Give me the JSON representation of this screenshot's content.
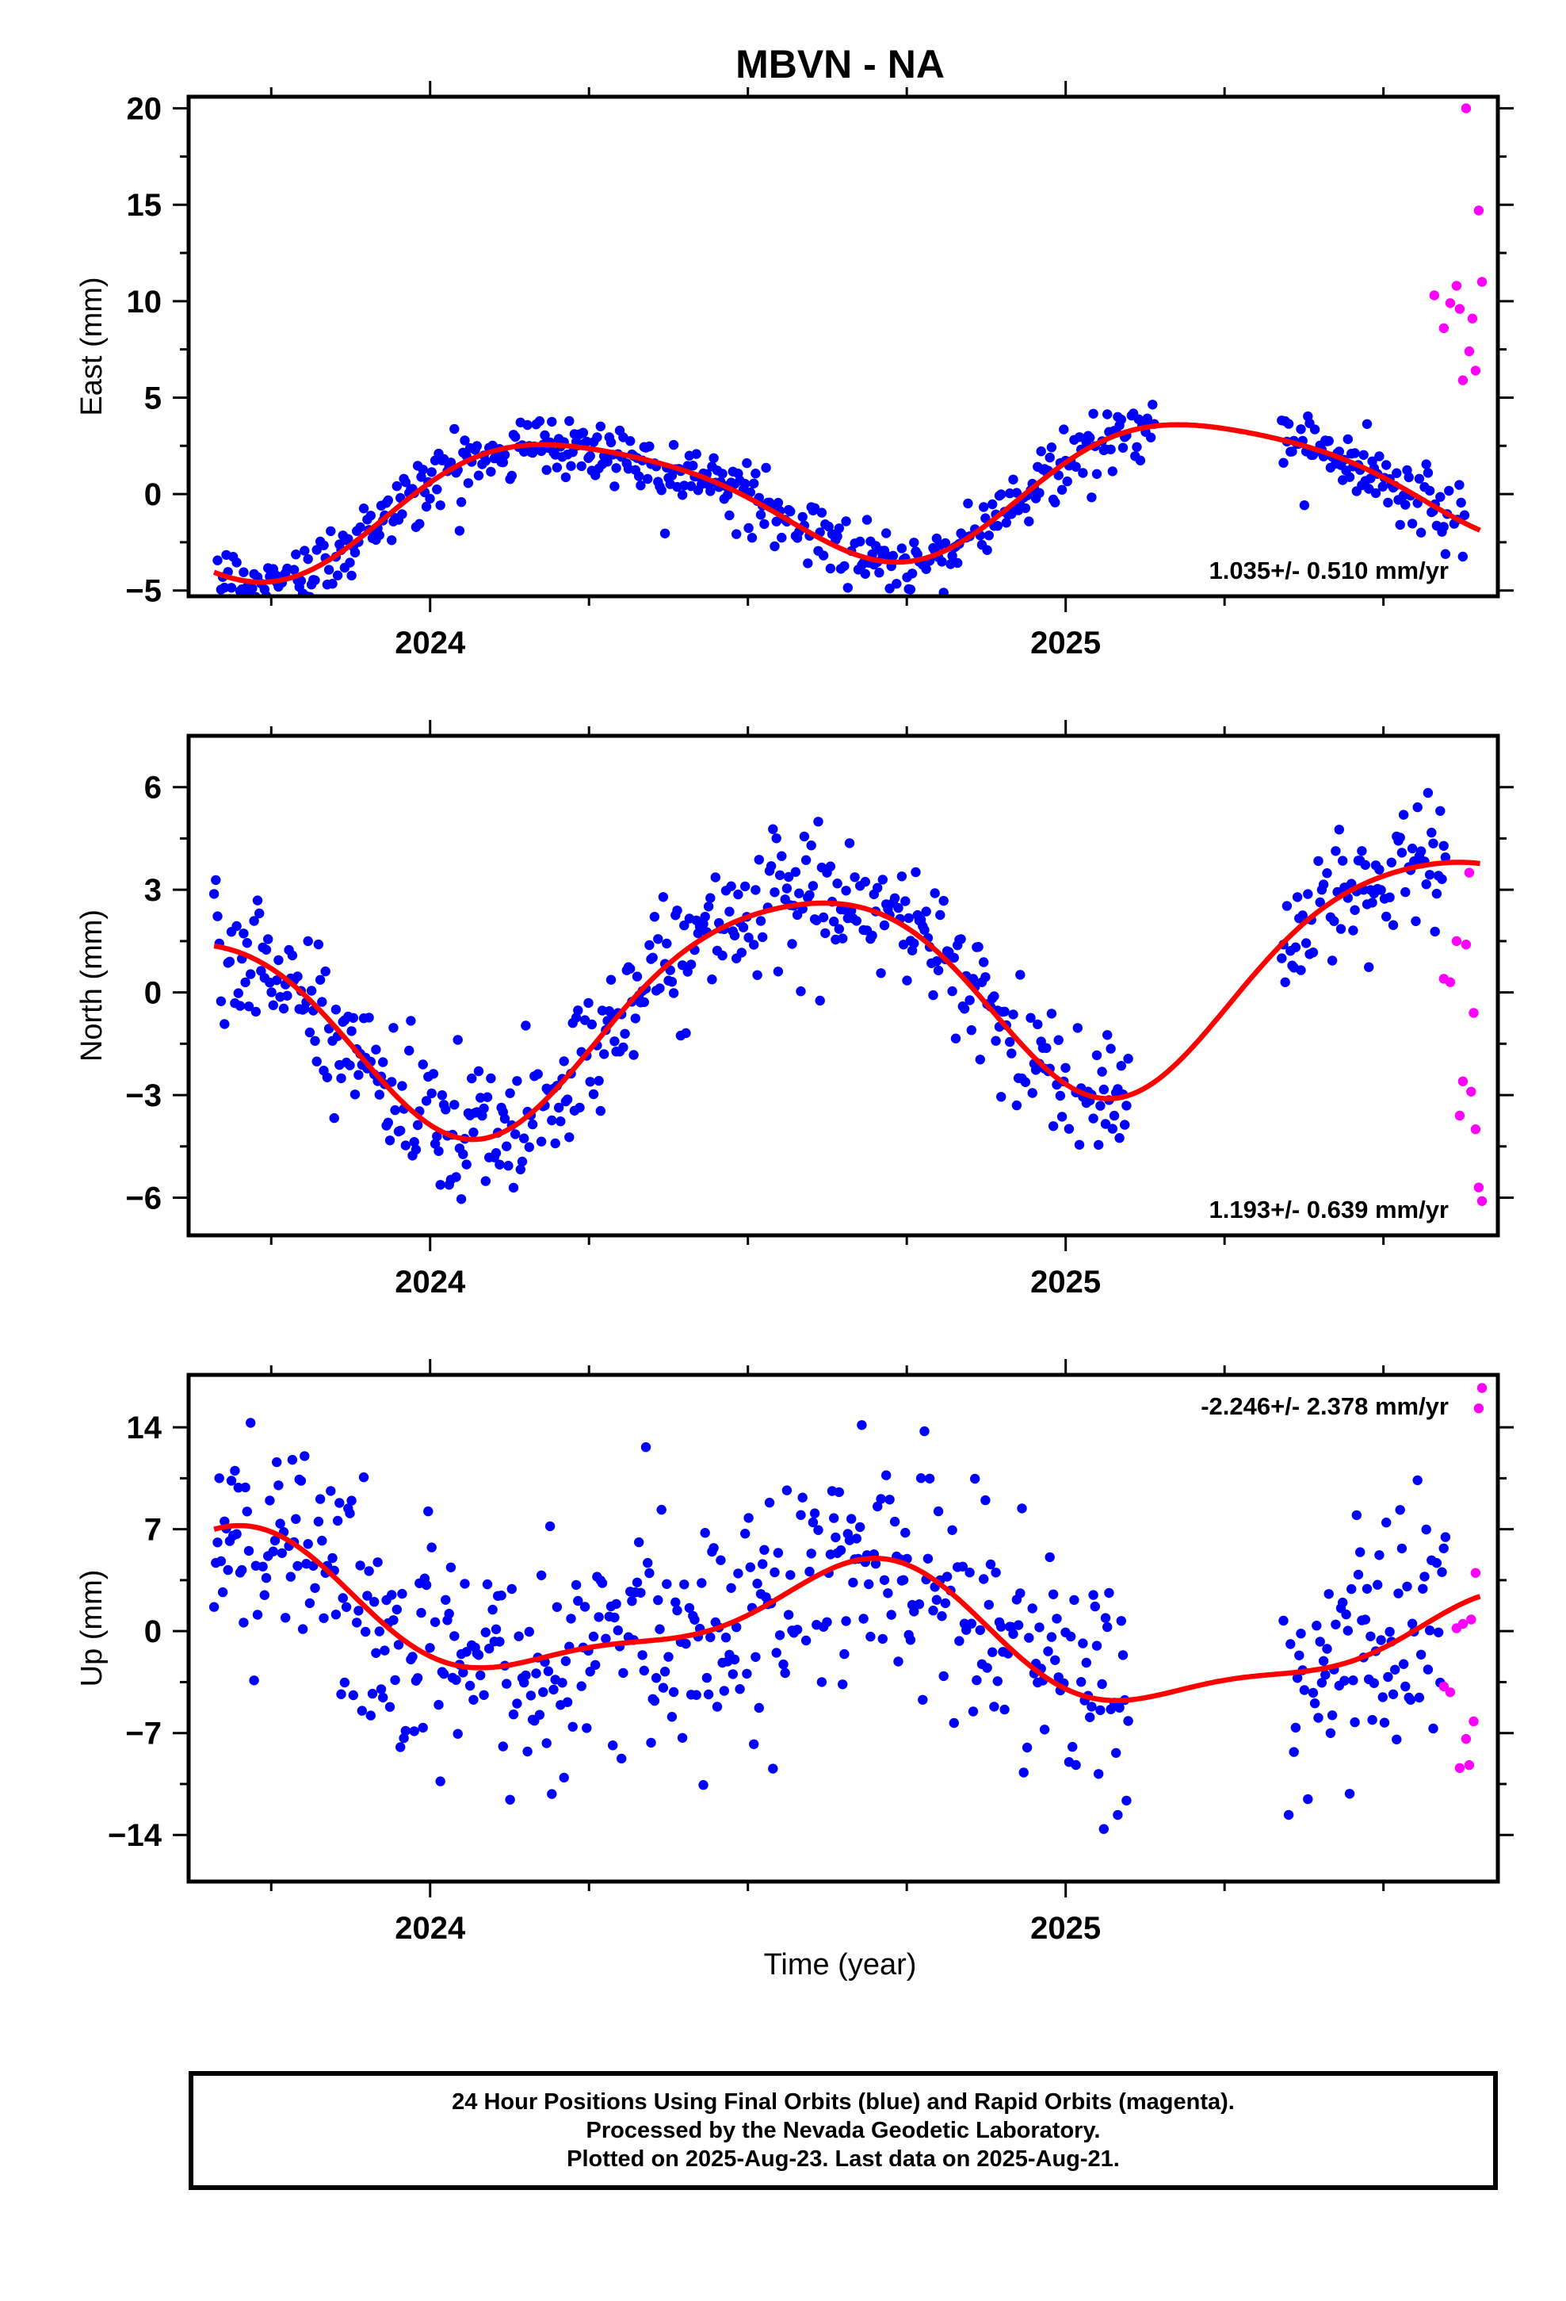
{
  "title": "MBVN - NA",
  "xlabel": "Time (year)",
  "footer": {
    "line1": "24 Hour Positions Using Final Orbits (blue) and Rapid Orbits (magenta).",
    "line2": "Processed by the Nevada Geodetic Laboratory.",
    "line3": "Plotted on 2025-Aug-23. Last data on 2025-Aug-21."
  },
  "colors": {
    "final": "#0000ff",
    "rapid": "#ff00ff",
    "fit": "#ff0000"
  },
  "chart_data": [
    {
      "type": "scatter",
      "ylabel": "East (mm)",
      "xlim": [
        2023.62,
        2025.68
      ],
      "ylim": [
        -5.3,
        20.6
      ],
      "yticks": [
        -5,
        0,
        5,
        10,
        15,
        20
      ],
      "xticks_major": [
        2024,
        2025
      ],
      "rate_label": "1.035+/- 0.510 mm/yr",
      "rate_pos": "bottom-right",
      "model": {
        "offset": 0.05,
        "slope": 1.035,
        "t0": 2024.6,
        "a1": -2.2,
        "b1": -2.4,
        "a2": -0.45,
        "b2": 0.3
      },
      "segments": [
        [
          2023.66,
          2025.14
        ],
        [
          2025.34,
          2025.63
        ]
      ],
      "noise": 0.85,
      "rapid_points": [
        [
          2025.58,
          10.3
        ],
        [
          2025.595,
          8.6
        ],
        [
          2025.605,
          9.9
        ],
        [
          2025.615,
          10.8
        ],
        [
          2025.62,
          9.6
        ],
        [
          2025.625,
          5.9
        ],
        [
          2025.63,
          20.0
        ],
        [
          2025.635,
          7.4
        ],
        [
          2025.64,
          9.1
        ],
        [
          2025.645,
          6.4
        ],
        [
          2025.65,
          14.7
        ],
        [
          2025.655,
          11.0
        ]
      ]
    },
    {
      "type": "scatter",
      "ylabel": "North (mm)",
      "xlim": [
        2023.62,
        2025.68
      ],
      "ylim": [
        -7.1,
        7.5
      ],
      "yticks": [
        -6,
        -3,
        0,
        3,
        6
      ],
      "xticks_major": [
        2024,
        2025
      ],
      "rate_label": "1.193+/- 0.639 mm/yr",
      "rate_pos": "bottom-right",
      "model": {
        "offset": -0.1,
        "slope": 1.193,
        "t0": 2024.6,
        "a1": -0.4,
        "b1": 3.1,
        "a2": 0.2,
        "b2": -0.4
      },
      "segments": [
        [
          2023.66,
          2025.1
        ],
        [
          2025.34,
          2025.6
        ]
      ],
      "noise": 0.95,
      "rapid_points": [
        [
          2025.595,
          0.4
        ],
        [
          2025.605,
          0.3
        ],
        [
          2025.615,
          1.5
        ],
        [
          2025.62,
          -3.6
        ],
        [
          2025.625,
          -2.6
        ],
        [
          2025.63,
          1.4
        ],
        [
          2025.635,
          3.5
        ],
        [
          2025.638,
          -2.9
        ],
        [
          2025.642,
          -0.6
        ],
        [
          2025.645,
          -4.0
        ],
        [
          2025.65,
          -5.7
        ],
        [
          2025.655,
          -6.1
        ]
      ]
    },
    {
      "type": "scatter",
      "ylabel": "Up (mm)",
      "xlim": [
        2023.62,
        2025.68
      ],
      "ylim": [
        -17.2,
        17.6
      ],
      "yticks": [
        -14,
        -7,
        0,
        7,
        14
      ],
      "xticks_major": [
        2024,
        2025
      ],
      "rate_label": "-2.246+/- 2.378 mm/yr",
      "rate_pos": "top-right",
      "model": {
        "offset": 0.2,
        "slope": -2.246,
        "t0": 2024.6,
        "a1": 1.6,
        "b1": 3.6,
        "a2": 1.3,
        "b2": -0.2
      },
      "segments": [
        [
          2023.66,
          2025.1
        ],
        [
          2025.34,
          2025.6
        ]
      ],
      "noise": 4.3,
      "rapid_points": [
        [
          2025.595,
          -3.8
        ],
        [
          2025.605,
          -4.2
        ],
        [
          2025.615,
          0.2
        ],
        [
          2025.62,
          -9.4
        ],
        [
          2025.625,
          0.5
        ],
        [
          2025.63,
          -7.4
        ],
        [
          2025.635,
          -9.2
        ],
        [
          2025.638,
          0.8
        ],
        [
          2025.642,
          -6.2
        ],
        [
          2025.645,
          4.0
        ],
        [
          2025.65,
          15.3
        ],
        [
          2025.655,
          16.7
        ]
      ]
    }
  ]
}
